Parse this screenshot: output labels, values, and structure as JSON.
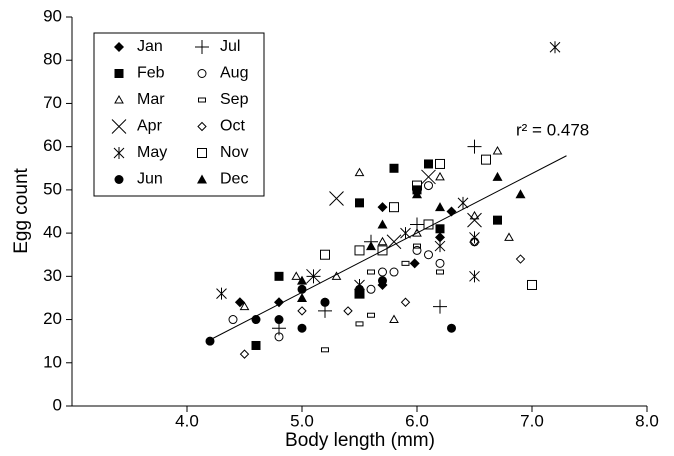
{
  "chart_data": {
    "type": "scatter",
    "x_label": "Body length (mm)",
    "y_label": "Egg count",
    "annotation": "r² = 0.478",
    "xlim": [
      3,
      8
    ],
    "ylim": [
      0,
      90
    ],
    "xticks": [
      {
        "value": 4,
        "label": "4.0"
      },
      {
        "value": 5,
        "label": "5.0"
      },
      {
        "value": 6,
        "label": "6.0"
      },
      {
        "value": 7,
        "label": "7.0"
      },
      {
        "value": 8,
        "label": "8.0"
      }
    ],
    "yticks": [
      0,
      10,
      20,
      30,
      40,
      50,
      60,
      70,
      80,
      90
    ],
    "trendline": {
      "x": [
        4.2,
        7.3
      ],
      "y": [
        15.3,
        57.9
      ]
    },
    "series": [
      {
        "name": "Jan",
        "marker": "diamond-filled",
        "color": "#000",
        "x": [
          4.46,
          4.8,
          5.7,
          5.98,
          6.2,
          5.7,
          6.3
        ],
        "y": [
          24,
          24,
          46,
          33,
          39,
          28,
          45
        ]
      },
      {
        "name": "Feb",
        "marker": "square-filled",
        "color": "#000",
        "x": [
          4.8,
          4.6,
          5.5,
          5.8,
          6.1,
          6.7,
          6.0,
          5.5,
          6.2
        ],
        "y": [
          30,
          14,
          47,
          55,
          56,
          43,
          50,
          26,
          41
        ]
      },
      {
        "name": "Mar",
        "marker": "triangle-open",
        "color": "#000",
        "x": [
          4.5,
          4.95,
          5.5,
          5.8,
          6.0,
          6.2,
          6.5,
          6.7,
          6.8,
          5.7,
          5.3
        ],
        "y": [
          23,
          30,
          54,
          20,
          40,
          53,
          44,
          59,
          39,
          38,
          30
        ]
      },
      {
        "name": "Apr",
        "marker": "x",
        "color": "#000",
        "x": [
          5.3,
          6.1,
          6.5,
          5.1,
          5.8
        ],
        "y": [
          48,
          53,
          43,
          30,
          38
        ]
      },
      {
        "name": "May",
        "marker": "asterisk",
        "color": "#000",
        "x": [
          4.3,
          7.2,
          6.4,
          6.2,
          6.5,
          6.5,
          5.9,
          5.5
        ],
        "y": [
          26,
          83,
          47,
          37,
          30,
          39,
          40,
          28
        ]
      },
      {
        "name": "Jun",
        "marker": "circle-filled",
        "color": "#000",
        "x": [
          4.2,
          4.6,
          4.8,
          5.0,
          5.2,
          5.0,
          6.3,
          5.7,
          5.5
        ],
        "y": [
          15,
          20,
          20,
          18,
          24,
          27,
          18,
          29,
          27
        ]
      },
      {
        "name": "Jul",
        "marker": "plus",
        "color": "#000",
        "x": [
          4.8,
          5.2,
          6.2,
          6.5,
          5.6,
          6.0,
          5.1
        ],
        "y": [
          18,
          22,
          23,
          60,
          38,
          42,
          30
        ]
      },
      {
        "name": "Aug",
        "marker": "circle-open",
        "color": "#000",
        "x": [
          4.4,
          4.8,
          5.2,
          5.6,
          5.8,
          6.0,
          6.1,
          6.2,
          6.1,
          6.5,
          5.7
        ],
        "y": [
          20,
          16,
          24,
          27,
          31,
          36,
          35,
          33,
          51,
          38,
          31
        ]
      },
      {
        "name": "Sep",
        "marker": "rect-small",
        "color": "#000",
        "x": [
          5.2,
          5.5,
          5.6,
          5.9,
          6.0,
          6.2,
          5.6
        ],
        "y": [
          13,
          19,
          31,
          33,
          37,
          31,
          21
        ]
      },
      {
        "name": "Oct",
        "marker": "diamond-open",
        "color": "#000",
        "x": [
          4.5,
          5.4,
          5.9,
          6.5,
          6.9,
          5.0
        ],
        "y": [
          12,
          22,
          24,
          38,
          34,
          22
        ]
      },
      {
        "name": "Nov",
        "marker": "square-open",
        "color": "#000",
        "x": [
          5.2,
          5.5,
          5.5,
          6.0,
          6.2,
          6.6,
          7.0,
          5.8,
          5.7,
          6.1
        ],
        "y": [
          35,
          36,
          26,
          51,
          56,
          57,
          28,
          46,
          36,
          42
        ]
      },
      {
        "name": "Dec",
        "marker": "triangle-filled",
        "color": "#000",
        "x": [
          5.0,
          5.0,
          5.7,
          6.0,
          6.2,
          6.7,
          6.9,
          5.6
        ],
        "y": [
          25,
          29,
          42,
          49,
          46,
          53,
          49,
          37
        ]
      }
    ]
  }
}
